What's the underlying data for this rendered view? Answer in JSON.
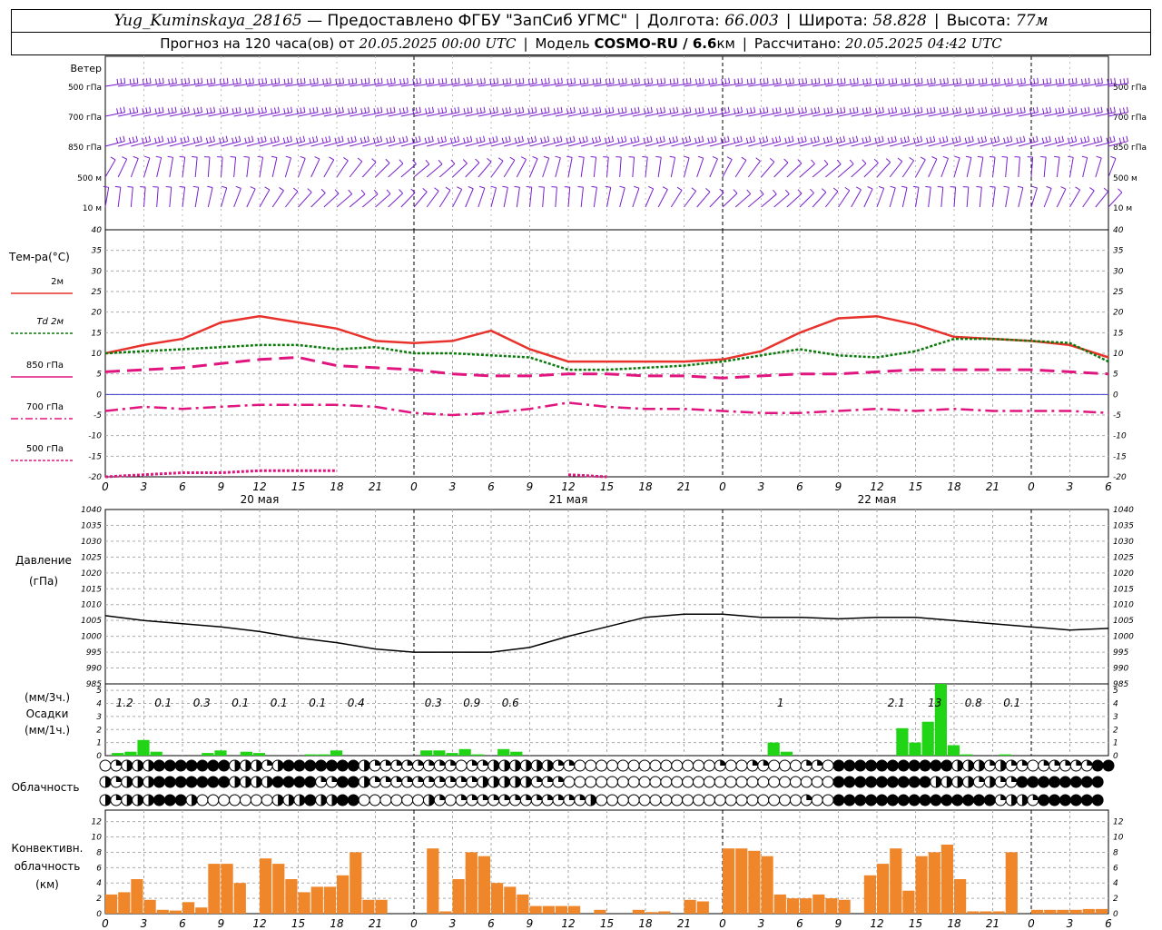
{
  "header": {
    "station": "Yug_Kuminskaya_28165",
    "provider": "— Предоставлено ФГБУ \"ЗапСиб УГМС\"",
    "lon_label": "Долгота:",
    "lon": "66.003",
    "lat_label": "Широта:",
    "lat": "58.828",
    "alt_label": "Высота:",
    "alt": "77м",
    "fc_prefix": "Прогноз на 120 часа(ов) от",
    "fc_start": "20.05.2025 00:00 UTC",
    "model_label": "Модель",
    "model": "COSMO-RU / 6.6",
    "model_unit": "км",
    "calc_label": "Рассчитано:",
    "calc_time": "20.05.2025 04:42 UTC"
  },
  "labels": {
    "wind": "Ветер",
    "wind_levels": [
      "500 гПа",
      "700 гПа",
      "850 гПа",
      "500 м",
      "10  м"
    ],
    "temp_title": "Тем-ра(°С)",
    "temp_legend": [
      "2м",
      "Td  2м",
      "850 гПа",
      "700 гПа",
      "500 гПа"
    ],
    "pressure_title": [
      "Давление",
      "(гПа)"
    ],
    "precip_title": [
      "(мм/3ч.)",
      "Осадки",
      "(мм/1ч.)"
    ],
    "cloud_title": "Облачность",
    "conv_title": [
      "Конвективн.",
      "облачность",
      "(км)"
    ],
    "days": [
      "20 мая",
      "21 мая",
      "22 мая"
    ],
    "hour_ticks": [
      "0",
      "3",
      "6",
      "9",
      "12",
      "15",
      "18",
      "21",
      "0",
      "3",
      "6",
      "9",
      "12",
      "15",
      "18",
      "21",
      "0",
      "3",
      "6",
      "9",
      "12",
      "15",
      "18",
      "21",
      "0",
      "3",
      "6"
    ]
  },
  "colors": {
    "t2m": "#e8322c",
    "td2m": "#0a7a0a",
    "t850": "#e0157f",
    "t700": "#e0157f",
    "t500": "#e0157f",
    "wind": "#7a1fcc",
    "precip": "#22d416",
    "conv": "#f0862a",
    "zero_line": "#3b3bcc"
  },
  "chart_data": [
    {
      "type": "line",
      "title": "Тем-ра(°С)",
      "ylim": [
        -20,
        40
      ],
      "x_hours": [
        0,
        3,
        6,
        9,
        12,
        15,
        18,
        21,
        24,
        27,
        30,
        33,
        36,
        39,
        42,
        45,
        48,
        51,
        54,
        57,
        60,
        63,
        66,
        69,
        72,
        75,
        78
      ],
      "series": [
        {
          "name": "2м",
          "values": [
            10,
            12,
            13.5,
            17.5,
            19,
            17.5,
            16,
            13,
            12.5,
            13,
            15.5,
            11,
            8,
            8,
            8,
            8,
            8.5,
            10.5,
            15,
            18.5,
            19,
            17,
            14,
            13.5,
            13,
            12,
            9
          ]
        },
        {
          "name": "Td  2м",
          "values": [
            10,
            10.5,
            11,
            11.5,
            12,
            12,
            11,
            11.5,
            10,
            10,
            9.5,
            9,
            6,
            6,
            6.5,
            7,
            8,
            9.5,
            11,
            9.5,
            9,
            10.5,
            13.5,
            13.5,
            13,
            12.5,
            8
          ]
        },
        {
          "name": "850 гПа",
          "values": [
            5.5,
            6,
            6.5,
            7.5,
            8.5,
            9,
            7,
            6.5,
            6,
            5,
            4.5,
            4.5,
            5,
            5,
            4.5,
            4.5,
            4,
            4.5,
            5,
            5,
            5.5,
            6,
            6,
            6,
            6,
            5.5,
            5
          ]
        },
        {
          "name": "700 гПа",
          "values": [
            -4,
            -3,
            -3.5,
            -3,
            -2.5,
            -2.5,
            -2.5,
            -3,
            -4.5,
            -5,
            -4.5,
            -3.5,
            -2,
            -3,
            -3.5,
            -3.5,
            -4,
            -4.5,
            -4.5,
            -4,
            -3.5,
            -4,
            -3.5,
            -4,
            -4,
            -4,
            -4.5
          ]
        },
        {
          "name": "500 гПа",
          "values": [
            -20,
            -19.5,
            -19,
            -19,
            -18.5,
            -18.5,
            -18.5,
            null,
            null,
            null,
            null,
            null,
            -19.5,
            -20,
            null,
            null,
            null,
            null,
            null,
            null,
            null,
            null,
            null,
            null,
            null,
            null,
            null
          ]
        }
      ]
    },
    {
      "type": "line",
      "title": "Давление (гПа)",
      "ylim": [
        985,
        1040
      ],
      "x_hours": [
        0,
        3,
        6,
        9,
        12,
        15,
        18,
        21,
        24,
        27,
        30,
        33,
        36,
        39,
        42,
        45,
        48,
        51,
        54,
        57,
        60,
        63,
        66,
        69,
        72,
        75,
        78
      ],
      "series": [
        {
          "name": "",
          "values": [
            1006.5,
            1005,
            1004,
            1003,
            1001.5,
            999.5,
            998,
            996,
            995,
            995,
            995,
            996.5,
            1000,
            1003,
            1006,
            1007,
            1007,
            1006,
            1006,
            1005.5,
            1006,
            1006,
            1005,
            1004,
            1003,
            1002,
            1002.5
          ]
        }
      ]
    },
    {
      "type": "bar",
      "title": "Осадки (мм/1ч.)",
      "ylim": [
        0,
        5.5
      ],
      "x_hours": [
        1,
        2,
        3,
        4,
        8,
        9,
        11,
        12,
        16,
        17,
        18,
        25,
        26,
        27,
        28,
        29,
        31,
        32,
        52,
        53,
        62,
        63,
        64,
        65,
        66,
        67,
        70
      ],
      "values": [
        0.2,
        0.3,
        1.2,
        0.3,
        0.2,
        0.4,
        0.3,
        0.2,
        0.1,
        0.1,
        0.4,
        0.4,
        0.4,
        0.2,
        0.5,
        0.1,
        0.5,
        0.3,
        1.0,
        0.3,
        2.1,
        1.0,
        2.6,
        5.5,
        0.8,
        0.1,
        0.1
      ],
      "labels_3h": [
        "1.2",
        "0.1",
        "0.3",
        "0.1",
        "0.1",
        "0.1",
        "0.4",
        "0.3",
        "0.9",
        "0.6",
        "1",
        "2.1",
        "13",
        "0.8",
        "0.1"
      ],
      "labels_3h_hours": [
        1.5,
        4.5,
        7.5,
        10.5,
        13.5,
        16.5,
        19.5,
        25.5,
        28.5,
        31.5,
        52.5,
        61.5,
        64.5,
        67.5,
        70.5
      ]
    },
    {
      "type": "bar",
      "title": "Конвективн. облачность (км)",
      "ylim": [
        0,
        13
      ],
      "x_hours": [
        0,
        1,
        2,
        3,
        4,
        5,
        6,
        7,
        8,
        9,
        10,
        11,
        12,
        13,
        14,
        15,
        16,
        17,
        18,
        19,
        20,
        21,
        22,
        24,
        25,
        26,
        27,
        28,
        29,
        30,
        31,
        32,
        33,
        34,
        35,
        36,
        37,
        38,
        39,
        40,
        41,
        42,
        43,
        44,
        45,
        46,
        47,
        48,
        49,
        50,
        51,
        52,
        53,
        54,
        55,
        56,
        57,
        58,
        59,
        60,
        61,
        62,
        63,
        64,
        65,
        66,
        67,
        68,
        69,
        70,
        71,
        72,
        73,
        74,
        75,
        76,
        77
      ],
      "values": [
        2.5,
        2.8,
        4.5,
        1.8,
        0.5,
        0.4,
        1.5,
        0.8,
        6.5,
        6.5,
        4,
        0,
        7.2,
        6.5,
        4.5,
        2.8,
        3.5,
        3.5,
        5,
        8,
        1.8,
        1.8,
        0,
        0,
        8.5,
        0.3,
        4.5,
        8,
        7.5,
        4,
        3.5,
        2.5,
        1,
        1,
        1,
        1,
        0,
        0.5,
        0,
        0,
        0.5,
        0.2,
        0.3,
        0,
        1.8,
        1.6,
        0,
        8.5,
        8.5,
        8.2,
        7.5,
        2.5,
        2,
        2,
        2.5,
        2,
        1.8,
        0,
        5,
        6.5,
        8.5,
        3,
        7.5,
        8,
        9,
        4.5,
        0.3,
        0.3,
        0.3,
        8,
        0,
        0.5,
        0.5,
        0.5,
        0.5,
        0.6,
        0.6
      ]
    },
    {
      "type": "heatmap",
      "title": "Облачность",
      "rows": [
        "OQHHH@@@@@@@HHHQH@@@@@@@HQQQQQQQQOQQHHHHHHQQOOOOOOOOOOOOOQOOQQOOOQQO@@@@@@@@@@@HHHQHQQOQQQQQ@@",
        "HQHHH@@@@@@@HHHH@@@@QQ@@HQQQQQQQQQQHHHHHQQQOOOOOOOOOOOOOOOOOOOOOOOOO@@@@@@@@@HHHHQHQQ@@@@@@@@",
        "HQHHH@@@HOOOOOOOHHH@HH@@OOOOOOHQOQQQQQQQQQQQQHOOOOOOOOOOOOOOOOOOOQOO@@@@@@@@@@@@@@@QHHQ@@@@@@"
      ],
      "legend": {
        "O": "clear",
        "Q": "partly",
        "H": "half",
        "@": "overcast"
      }
    }
  ]
}
